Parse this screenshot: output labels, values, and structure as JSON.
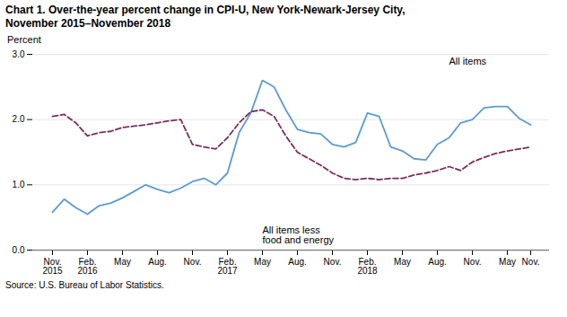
{
  "chart_data": {
    "type": "line",
    "title": "Chart 1. Over-the-year percent change in CPI-U, New York-Newark-Jersey City,\nNovember 2015–November 2018",
    "y_label": "Percent",
    "source": "Source: U.S. Bureau of Labor Statistics.",
    "categories": [
      "Nov.\n2015",
      null,
      null,
      "Feb.\n2016",
      null,
      null,
      "May",
      null,
      null,
      "Aug.",
      null,
      null,
      "Nov.",
      null,
      null,
      "Feb.\n2017",
      null,
      null,
      "May",
      null,
      null,
      "Aug.",
      null,
      null,
      "Nov.",
      null,
      null,
      "Feb.\n2018",
      null,
      null,
      "May",
      null,
      null,
      "Aug.",
      null,
      null,
      "Nov.",
      null,
      null,
      "May",
      null,
      "Nov."
    ],
    "series": [
      {
        "name": "All items",
        "color": "#5b9bd5",
        "line_style": "solid",
        "values": [
          0.58,
          0.78,
          0.65,
          0.55,
          0.68,
          0.72,
          0.8,
          0.9,
          1.0,
          0.93,
          0.88,
          0.95,
          1.05,
          1.1,
          1.0,
          1.18,
          1.8,
          2.1,
          2.6,
          2.5,
          2.15,
          1.85,
          1.8,
          1.78,
          1.62,
          1.58,
          1.65,
          2.1,
          2.05,
          1.58,
          1.52,
          1.4,
          1.38,
          1.62,
          1.72,
          1.95,
          2.0,
          2.18,
          2.2,
          2.2,
          2.02,
          1.92
        ]
      },
      {
        "name": "All items less food and energy",
        "color": "#7b2d5e",
        "line_style": "dashed",
        "values": [
          2.05,
          2.08,
          1.95,
          1.75,
          1.8,
          1.82,
          1.88,
          1.9,
          1.92,
          1.95,
          1.98,
          2.0,
          1.62,
          1.58,
          1.55,
          1.72,
          1.95,
          2.12,
          2.15,
          2.05,
          1.75,
          1.5,
          1.4,
          1.3,
          1.18,
          1.1,
          1.08,
          1.1,
          1.08,
          1.1,
          1.1,
          1.15,
          1.18,
          1.22,
          1.28,
          1.22,
          1.35,
          1.42,
          1.48,
          1.52,
          1.55,
          1.58
        ]
      }
    ],
    "annotations": [
      "All items",
      "All items less\nfood and energy"
    ],
    "ylim": [
      0,
      3
    ],
    "yticks": [
      0,
      1,
      2,
      3
    ],
    "grid": true
  }
}
